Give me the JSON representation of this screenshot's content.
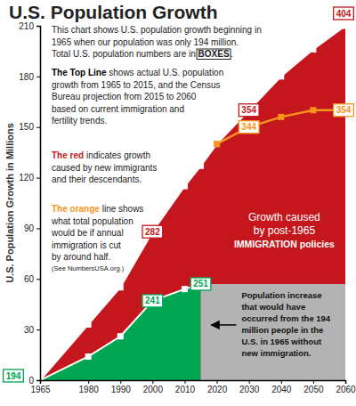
{
  "chart_data": {
    "type": "area",
    "title": "U.S. Population Growth",
    "y_label": "U.S. Population Growth in Millions",
    "x": [
      1965,
      1980,
      1990,
      2000,
      2010,
      2015,
      2020,
      2030,
      2040,
      2050,
      2060
    ],
    "series": [
      {
        "type": "area",
        "color": "#c4161c",
        "marker": "square",
        "line_style": "solid",
        "values": [
          0,
          33,
          55,
          88,
          115,
          127,
          140,
          160,
          180,
          196,
          210
        ]
      },
      {
        "type": "area",
        "color": "#00a651",
        "marker": "square",
        "line_style": "solid",
        "values": [
          0,
          14,
          26,
          47,
          54,
          57,
          null,
          null,
          null,
          null,
          null
        ]
      },
      {
        "type": "area",
        "color": "#b3b3b3",
        "marker": "none",
        "values": [
          null,
          null,
          null,
          null,
          null,
          57,
          57,
          57,
          57,
          57,
          57
        ]
      },
      {
        "type": "line",
        "color": "#f7941d",
        "marker": "square",
        "line_style": "solid",
        "values": [
          null,
          null,
          null,
          null,
          null,
          null,
          140,
          150,
          156,
          160,
          160
        ]
      }
    ],
    "xlim": [
      1965,
      2060
    ],
    "xticks": [
      1965,
      1980,
      1990,
      2000,
      2010,
      2020,
      2030,
      2040,
      2050,
      2060
    ],
    "ylim": [
      0,
      210
    ],
    "yticks": [
      0,
      30,
      60,
      90,
      120,
      150,
      180,
      210
    ],
    "grid": false,
    "annotations": [
      {
        "text": "194",
        "x": 1965,
        "y": 0,
        "color": "#00a651"
      },
      {
        "text": "241",
        "x": 2000,
        "y": 47,
        "color": "#00a651"
      },
      {
        "text": "251",
        "x": 2015,
        "y": 57,
        "color": "#00a651"
      },
      {
        "text": "282",
        "x": 2000,
        "y": 88,
        "color": "#c4161c"
      },
      {
        "text": "354",
        "x": 2030,
        "y": 160,
        "color": "#c4161c"
      },
      {
        "text": "404",
        "x": 2060,
        "y": 210,
        "color": "#c4161c"
      },
      {
        "text": "344",
        "x": 2030,
        "y": 150,
        "color": "#f7941d"
      },
      {
        "text": "354",
        "x": 2060,
        "y": 160,
        "color": "#f7941d"
      }
    ],
    "paragraphs": [
      {
        "lines": [
          [
            "This chart shows U.S. population growth beginning in"
          ],
          [
            "1965 when our population was only 194 million."
          ],
          [
            "Total U.S. population numbers are in ",
            "BOXES",
            "."
          ]
        ]
      },
      {
        "color": "#000000",
        "lines": [
          [
            "The Top Line",
            " shows actual U.S. population"
          ],
          [
            "growth from 1965 to 2015, and the Census"
          ],
          [
            "Bureau projection from 2015 to 2060"
          ],
          [
            "based on current immigration and"
          ],
          [
            "fertility trends."
          ]
        ]
      },
      {
        "color": "#c4161c",
        "lines": [
          [
            "The red",
            " indicates growth"
          ],
          [
            "caused by new immigrants"
          ],
          [
            "and their descendants."
          ]
        ]
      },
      {
        "color": "#f7941d",
        "lines": [
          [
            "The orange",
            " line shows"
          ],
          [
            "what total population"
          ],
          [
            "would be if annual"
          ],
          [
            "immigration is cut"
          ],
          [
            "by around half."
          ],
          [
            "(See NumbersUSA.org.)"
          ]
        ]
      }
    ],
    "area_labels": {
      "immigration": [
        "Growth caused",
        "by post-1965",
        "IMMIGRATION policies"
      ],
      "no_immigration": [
        "Population increase",
        "that would have",
        "occurred from the 194",
        "million people in the",
        "U.S. in 1965 without",
        "new immigration."
      ]
    }
  }
}
